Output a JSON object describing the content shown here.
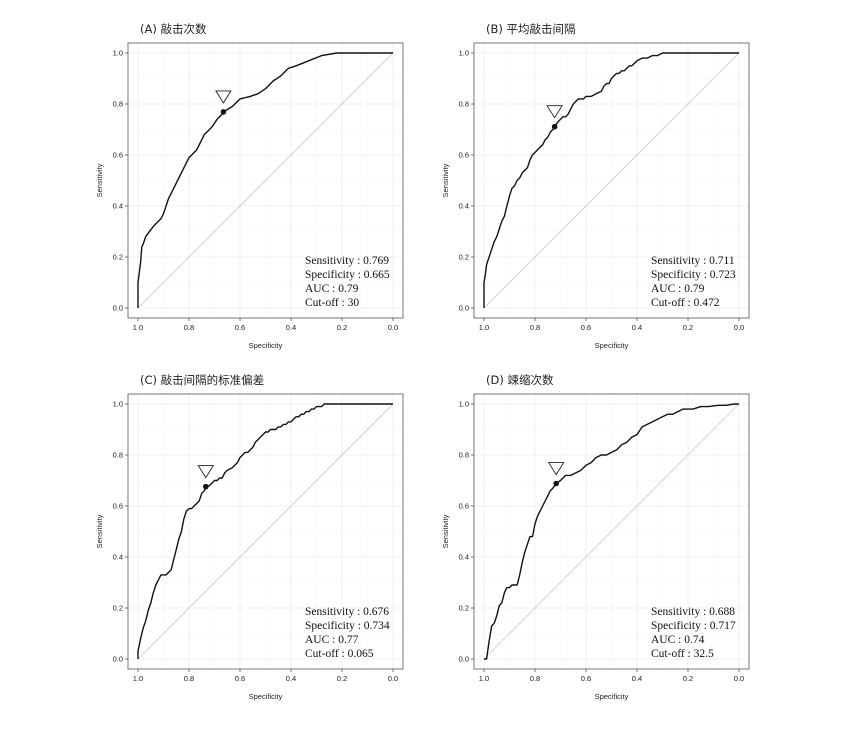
{
  "chart_data": [
    {
      "type": "line",
      "title": "(A) 敲击次数",
      "xlabel": "Specificity",
      "ylabel": "Sensitivity",
      "xlim": [
        1.0,
        0.0
      ],
      "ylim": [
        0.0,
        1.0
      ],
      "xticks": [
        "1.0",
        "0.8",
        "0.6",
        "0.4",
        "0.2",
        "0.0"
      ],
      "yticks": [
        "0.0",
        "0.2",
        "0.4",
        "0.6",
        "0.8",
        "1.0"
      ],
      "grid": true,
      "reference_line": "diagonal",
      "cutoff_point": {
        "specificity": 0.665,
        "sensitivity": 0.769
      },
      "annotations": [
        "Sensitivity : 0.769",
        "Specificity : 0.665",
        "AUC : 0.79",
        "Cut-off : 30"
      ],
      "curve": {
        "specificity": [
          1.0,
          1.0,
          0.995,
          0.99,
          0.985,
          0.98,
          0.97,
          0.94,
          0.91,
          0.9,
          0.88,
          0.87,
          0.85,
          0.83,
          0.8,
          0.77,
          0.74,
          0.71,
          0.69,
          0.67,
          0.665,
          0.63,
          0.6,
          0.56,
          0.53,
          0.5,
          0.47,
          0.44,
          0.41,
          0.38,
          0.33,
          0.28,
          0.22,
          0.18,
          0.15,
          0.1,
          0.0
        ],
        "sensitivity": [
          0.0,
          0.1,
          0.14,
          0.18,
          0.24,
          0.25,
          0.28,
          0.32,
          0.35,
          0.37,
          0.43,
          0.45,
          0.49,
          0.53,
          0.59,
          0.62,
          0.68,
          0.71,
          0.74,
          0.76,
          0.769,
          0.79,
          0.82,
          0.83,
          0.84,
          0.86,
          0.89,
          0.91,
          0.94,
          0.95,
          0.97,
          0.99,
          1.0,
          1.0,
          1.0,
          1.0,
          1.0
        ]
      }
    },
    {
      "type": "line",
      "title": "(B) 平均敲击间隔",
      "xlabel": "Specificity",
      "ylabel": "Sensitivity",
      "xlim": [
        1.0,
        0.0
      ],
      "ylim": [
        0.0,
        1.0
      ],
      "xticks": [
        "1.0",
        "0.8",
        "0.6",
        "0.4",
        "0.2",
        "0.0"
      ],
      "yticks": [
        "0.0",
        "0.2",
        "0.4",
        "0.6",
        "0.8",
        "1.0"
      ],
      "grid": true,
      "reference_line": "diagonal",
      "cutoff_point": {
        "specificity": 0.723,
        "sensitivity": 0.711
      },
      "annotations": [
        "Sensitivity : 0.711",
        "Specificity : 0.723",
        "AUC : 0.79",
        "Cut-off : 0.472"
      ],
      "curve": {
        "specificity": [
          1.0,
          1.0,
          0.995,
          0.99,
          0.98,
          0.97,
          0.96,
          0.95,
          0.94,
          0.93,
          0.92,
          0.91,
          0.9,
          0.89,
          0.88,
          0.87,
          0.86,
          0.85,
          0.84,
          0.83,
          0.82,
          0.81,
          0.8,
          0.79,
          0.78,
          0.77,
          0.76,
          0.75,
          0.74,
          0.73,
          0.723,
          0.71,
          0.7,
          0.69,
          0.68,
          0.67,
          0.66,
          0.65,
          0.64,
          0.63,
          0.62,
          0.61,
          0.6,
          0.59,
          0.58,
          0.56,
          0.54,
          0.53,
          0.52,
          0.51,
          0.5,
          0.49,
          0.48,
          0.47,
          0.46,
          0.45,
          0.44,
          0.43,
          0.42,
          0.41,
          0.4,
          0.38,
          0.36,
          0.34,
          0.32,
          0.3,
          0.28,
          0.26,
          0.24,
          0.2,
          0.15,
          0.1,
          0.0
        ],
        "sensitivity": [
          0.0,
          0.1,
          0.13,
          0.17,
          0.2,
          0.23,
          0.26,
          0.28,
          0.31,
          0.34,
          0.36,
          0.4,
          0.44,
          0.47,
          0.48,
          0.5,
          0.51,
          0.53,
          0.54,
          0.55,
          0.58,
          0.6,
          0.61,
          0.62,
          0.63,
          0.64,
          0.66,
          0.67,
          0.69,
          0.7,
          0.711,
          0.73,
          0.74,
          0.75,
          0.75,
          0.76,
          0.78,
          0.8,
          0.81,
          0.82,
          0.82,
          0.82,
          0.83,
          0.83,
          0.83,
          0.84,
          0.85,
          0.87,
          0.88,
          0.88,
          0.9,
          0.91,
          0.92,
          0.92,
          0.93,
          0.93,
          0.94,
          0.95,
          0.95,
          0.96,
          0.97,
          0.98,
          0.98,
          0.99,
          0.99,
          1.0,
          1.0,
          1.0,
          1.0,
          1.0,
          1.0,
          1.0,
          1.0
        ]
      }
    },
    {
      "type": "line",
      "title": "(C) 敲击间隔的标准偏差",
      "xlabel": "Specificity",
      "ylabel": "Sensitivity",
      "xlim": [
        1.0,
        0.0
      ],
      "ylim": [
        0.0,
        1.0
      ],
      "xticks": [
        "1.0",
        "0.8",
        "0.6",
        "0.4",
        "0.2",
        "0.0"
      ],
      "yticks": [
        "0.0",
        "0.2",
        "0.4",
        "0.6",
        "0.8",
        "1.0"
      ],
      "grid": true,
      "reference_line": "diagonal",
      "cutoff_point": {
        "specificity": 0.734,
        "sensitivity": 0.676
      },
      "annotations": [
        "Sensitivity : 0.676",
        "Specificity : 0.734",
        "AUC : 0.77",
        "Cut-off : 0.065"
      ],
      "curve": {
        "specificity": [
          1.0,
          1.0,
          0.99,
          0.98,
          0.97,
          0.96,
          0.95,
          0.94,
          0.93,
          0.92,
          0.91,
          0.9,
          0.89,
          0.88,
          0.87,
          0.86,
          0.85,
          0.84,
          0.83,
          0.82,
          0.81,
          0.8,
          0.79,
          0.78,
          0.77,
          0.76,
          0.75,
          0.74,
          0.734,
          0.72,
          0.71,
          0.7,
          0.69,
          0.68,
          0.67,
          0.66,
          0.65,
          0.63,
          0.61,
          0.6,
          0.59,
          0.58,
          0.57,
          0.56,
          0.55,
          0.54,
          0.53,
          0.52,
          0.51,
          0.5,
          0.49,
          0.48,
          0.47,
          0.46,
          0.45,
          0.44,
          0.43,
          0.42,
          0.41,
          0.4,
          0.39,
          0.38,
          0.37,
          0.36,
          0.35,
          0.34,
          0.33,
          0.32,
          0.31,
          0.3,
          0.29,
          0.28,
          0.27,
          0.26,
          0.25,
          0.22,
          0.18,
          0.12,
          0.0
        ],
        "sensitivity": [
          0.0,
          0.03,
          0.08,
          0.12,
          0.15,
          0.19,
          0.22,
          0.26,
          0.29,
          0.31,
          0.33,
          0.33,
          0.33,
          0.34,
          0.35,
          0.39,
          0.43,
          0.47,
          0.5,
          0.55,
          0.58,
          0.59,
          0.59,
          0.6,
          0.61,
          0.62,
          0.65,
          0.66,
          0.676,
          0.68,
          0.69,
          0.7,
          0.7,
          0.71,
          0.71,
          0.73,
          0.74,
          0.75,
          0.77,
          0.79,
          0.8,
          0.81,
          0.81,
          0.82,
          0.83,
          0.85,
          0.86,
          0.87,
          0.88,
          0.89,
          0.89,
          0.9,
          0.9,
          0.9,
          0.91,
          0.91,
          0.92,
          0.92,
          0.93,
          0.93,
          0.94,
          0.95,
          0.95,
          0.96,
          0.96,
          0.97,
          0.97,
          0.98,
          0.98,
          0.99,
          0.99,
          0.99,
          1.0,
          1.0,
          1.0,
          1.0,
          1.0,
          1.0,
          1.0
        ]
      }
    },
    {
      "type": "line",
      "title": "(D) 竦缩次数",
      "xlabel": "Specificity",
      "ylabel": "Sensitivity",
      "xlim": [
        1.0,
        0.0
      ],
      "ylim": [
        0.0,
        1.0
      ],
      "xticks": [
        "1.0",
        "0.8",
        "0.6",
        "0.4",
        "0.2",
        "0.0"
      ],
      "yticks": [
        "0.0",
        "0.2",
        "0.4",
        "0.6",
        "0.8",
        "1.0"
      ],
      "grid": true,
      "reference_line": "diagonal",
      "cutoff_point": {
        "specificity": 0.717,
        "sensitivity": 0.688
      },
      "annotations": [
        "Sensitivity : 0.688",
        "Specificity : 0.717",
        "AUC : 0.74",
        "Cut-off : 32.5"
      ],
      "curve": {
        "specificity": [
          1.0,
          0.99,
          0.98,
          0.975,
          0.97,
          0.96,
          0.95,
          0.94,
          0.93,
          0.92,
          0.91,
          0.9,
          0.89,
          0.88,
          0.87,
          0.86,
          0.85,
          0.84,
          0.83,
          0.82,
          0.81,
          0.8,
          0.79,
          0.78,
          0.77,
          0.76,
          0.75,
          0.74,
          0.73,
          0.717,
          0.7,
          0.68,
          0.66,
          0.64,
          0.62,
          0.6,
          0.58,
          0.56,
          0.54,
          0.52,
          0.5,
          0.48,
          0.46,
          0.44,
          0.42,
          0.4,
          0.38,
          0.36,
          0.34,
          0.32,
          0.3,
          0.28,
          0.26,
          0.24,
          0.22,
          0.2,
          0.18,
          0.15,
          0.12,
          0.08,
          0.05,
          0.02,
          0.0
        ],
        "sensitivity": [
          0.0,
          0.0,
          0.07,
          0.1,
          0.13,
          0.14,
          0.17,
          0.21,
          0.22,
          0.26,
          0.28,
          0.28,
          0.29,
          0.29,
          0.29,
          0.33,
          0.38,
          0.42,
          0.45,
          0.48,
          0.48,
          0.53,
          0.56,
          0.58,
          0.6,
          0.62,
          0.64,
          0.66,
          0.67,
          0.688,
          0.7,
          0.72,
          0.72,
          0.73,
          0.74,
          0.76,
          0.77,
          0.79,
          0.8,
          0.8,
          0.81,
          0.82,
          0.84,
          0.85,
          0.87,
          0.88,
          0.91,
          0.92,
          0.93,
          0.94,
          0.95,
          0.96,
          0.96,
          0.97,
          0.98,
          0.98,
          0.98,
          0.99,
          0.99,
          0.995,
          0.995,
          1.0,
          1.0
        ]
      }
    }
  ]
}
